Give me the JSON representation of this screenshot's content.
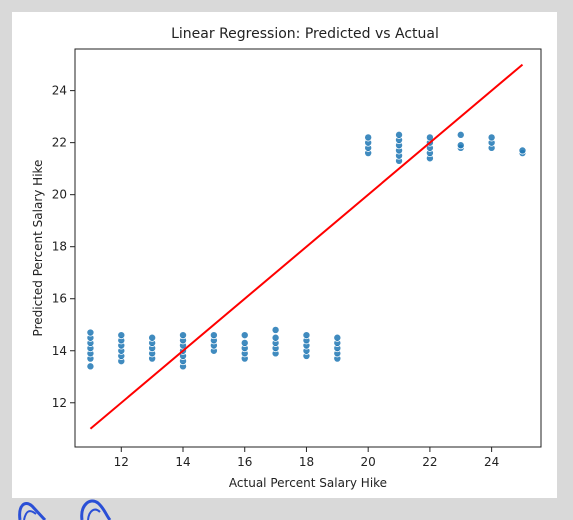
{
  "chart_data": {
    "type": "scatter",
    "title": "Linear Regression: Predicted vs Actual",
    "xlabel": "Actual Percent Salary Hike",
    "ylabel": "Predicted Percent Salary Hike",
    "xlim": [
      10.5,
      25.6
    ],
    "ylim": [
      10.3,
      25.6
    ],
    "xticks": [
      12,
      14,
      16,
      18,
      20,
      22,
      24
    ],
    "yticks": [
      12,
      14,
      16,
      18,
      20,
      22,
      24
    ],
    "point_color": "#1f77b4",
    "line_color": "#ff0000",
    "reference_line": {
      "x": [
        11,
        25
      ],
      "y": [
        11,
        25
      ]
    },
    "points": [
      {
        "x": 11,
        "y": [
          13.4,
          13.7,
          13.9,
          14.1,
          14.3,
          14.5,
          14.7
        ]
      },
      {
        "x": 12,
        "y": [
          13.6,
          13.8,
          14.0,
          14.2,
          14.4,
          14.6
        ]
      },
      {
        "x": 13,
        "y": [
          13.7,
          13.9,
          14.1,
          14.3,
          14.5
        ]
      },
      {
        "x": 14,
        "y": [
          13.4,
          13.6,
          13.8,
          14.0,
          14.2,
          14.4,
          14.6
        ]
      },
      {
        "x": 15,
        "y": [
          14.0,
          14.2,
          14.4,
          14.6
        ]
      },
      {
        "x": 16,
        "y": [
          13.7,
          13.9,
          14.1,
          14.3,
          14.6
        ]
      },
      {
        "x": 17,
        "y": [
          13.9,
          14.1,
          14.3,
          14.5,
          14.8
        ]
      },
      {
        "x": 18,
        "y": [
          13.8,
          14.0,
          14.2,
          14.4,
          14.6
        ]
      },
      {
        "x": 19,
        "y": [
          13.7,
          13.9,
          14.1,
          14.3,
          14.5
        ]
      },
      {
        "x": 20,
        "y": [
          21.6,
          21.8,
          22.0,
          22.2
        ]
      },
      {
        "x": 21,
        "y": [
          21.3,
          21.5,
          21.7,
          21.9,
          22.1,
          22.3
        ]
      },
      {
        "x": 22,
        "y": [
          21.4,
          21.6,
          21.8,
          22.0,
          22.2
        ]
      },
      {
        "x": 23,
        "y": [
          21.8,
          21.9,
          22.3
        ]
      },
      {
        "x": 24,
        "y": [
          21.8,
          22.0,
          22.2
        ]
      },
      {
        "x": 25,
        "y": [
          21.6,
          21.7
        ]
      }
    ]
  }
}
